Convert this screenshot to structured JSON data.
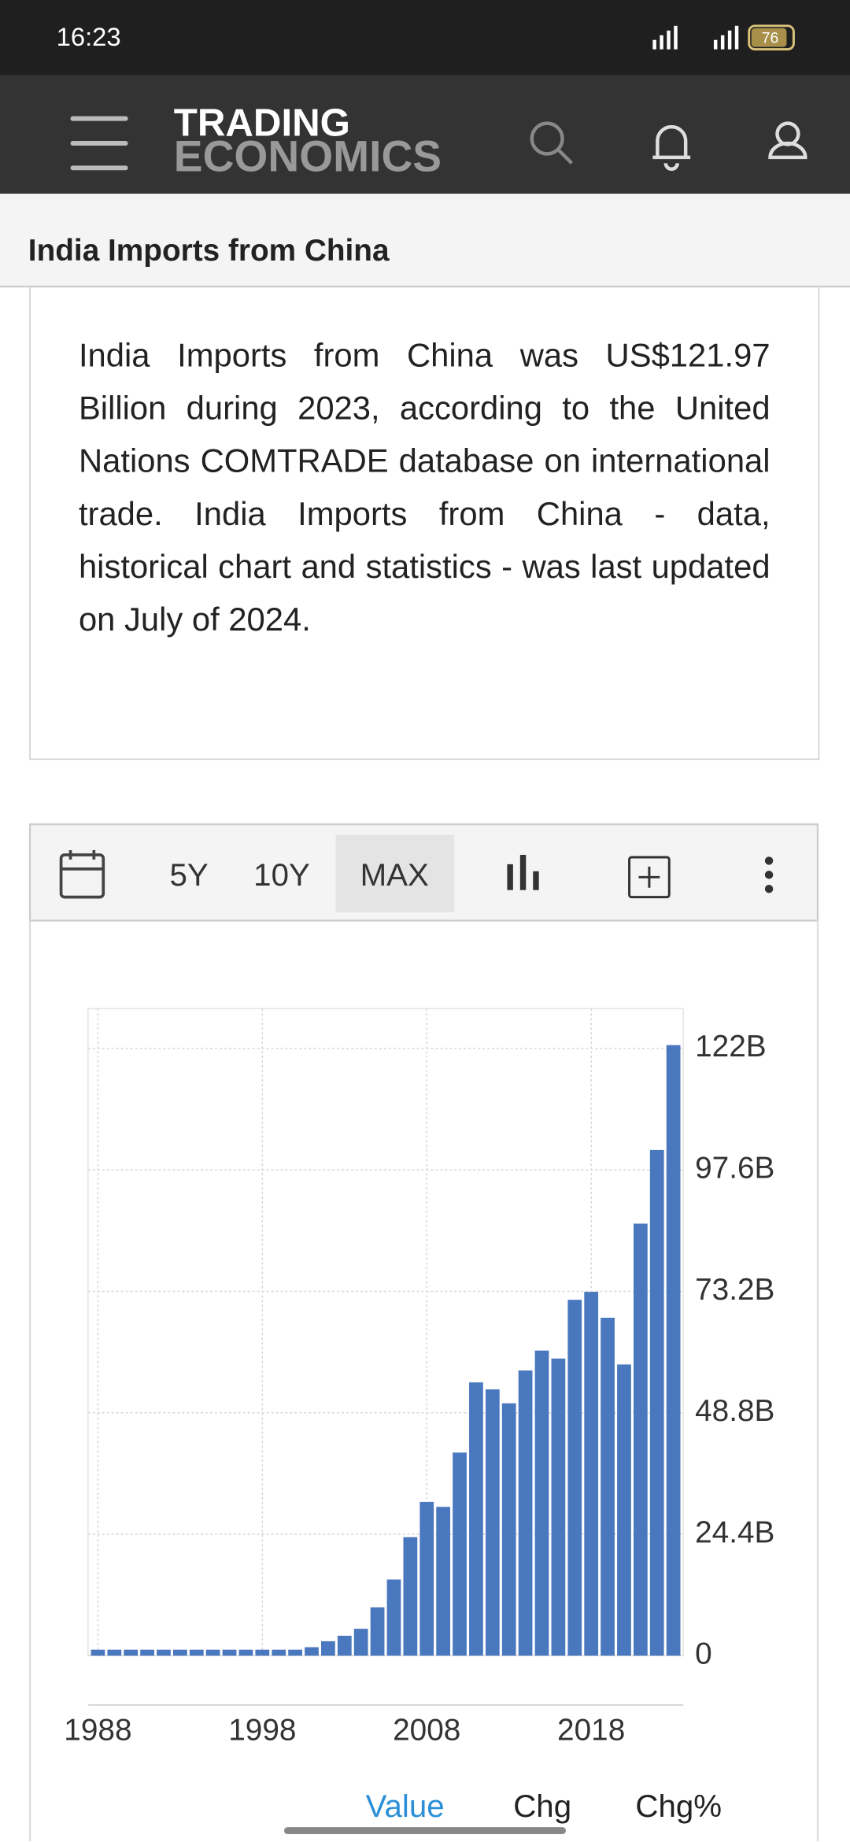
{
  "status": {
    "time": "16:23",
    "battery": "76"
  },
  "header": {
    "brand_line1": "TRADING",
    "brand_line2": "ECONOMICS"
  },
  "page_title": "India Imports from China",
  "summary": "India Imports from China was US$121.97 Billion during 2023, according to the United Nations COMTRADE database on international trade. India Imports from China - data, historical chart and statistics - was last updated on July of 2024.",
  "toolbar": {
    "buttons": [
      "5Y",
      "10Y",
      "MAX"
    ],
    "selected": "MAX"
  },
  "tabs": {
    "items": [
      "Value",
      "Chg",
      "Chg%"
    ],
    "active": "Value"
  },
  "chart_data": {
    "type": "bar",
    "x": [
      1988,
      1989,
      1990,
      1991,
      1992,
      1993,
      1994,
      1995,
      1996,
      1997,
      1998,
      1999,
      2000,
      2001,
      2002,
      2003,
      2004,
      2005,
      2006,
      2007,
      2008,
      2009,
      2010,
      2011,
      2012,
      2013,
      2014,
      2015,
      2016,
      2017,
      2018,
      2019,
      2020,
      2021,
      2022,
      2023
    ],
    "values": [
      0.5,
      0.5,
      0.5,
      0.5,
      0.5,
      0.5,
      0.5,
      0.5,
      0.5,
      0.5,
      0.5,
      0.5,
      0.5,
      1.0,
      2.2,
      3.3,
      4.7,
      9,
      14.6,
      23.1,
      30.2,
      29.2,
      40.1,
      54.2,
      52.8,
      50,
      56.6,
      60.6,
      59,
      70.8,
      72.4,
      67.2,
      57.8,
      86.1,
      100.9,
      121.97
    ],
    "color": "#4a78be",
    "xlim": [
      1987.4,
      2023.6
    ],
    "xticks": [
      1988,
      1998,
      2008,
      2018
    ],
    "ylim": [
      0,
      130
    ],
    "yticks": [
      0,
      {
        "value": 24.4,
        "label": "24.4B"
      },
      {
        "value": 48.8,
        "label": "48.8B"
      },
      {
        "value": 73.2,
        "label": "73.2B"
      },
      {
        "value": 97.6,
        "label": "97.6B"
      },
      {
        "value": 122,
        "label": "122B"
      }
    ],
    "grid": true,
    "y_axis_side": "right"
  }
}
